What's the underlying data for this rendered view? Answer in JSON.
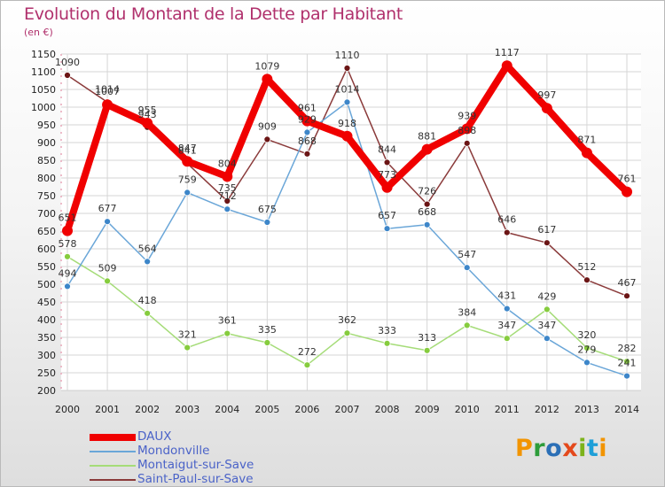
{
  "title": "Evolution du Montant de la Dette par Habitant",
  "unit": "(en €)",
  "logo": {
    "text": "Proxiti",
    "letters": [
      {
        "ch": "P",
        "color": "#f29400"
      },
      {
        "ch": "r",
        "color": "#2d9c3a"
      },
      {
        "ch": "o",
        "color": "#2b6fb6"
      },
      {
        "ch": "x",
        "color": "#e4491c"
      },
      {
        "ch": "i",
        "color": "#7cb31b"
      },
      {
        "ch": "t",
        "color": "#1e9fd8"
      },
      {
        "ch": "i",
        "color": "#f29400"
      }
    ]
  },
  "chart_data": {
    "type": "line",
    "title": "Evolution du Montant de la Dette par Habitant",
    "subtitle": "(en €)",
    "x": [
      "2000",
      "2001",
      "2002",
      "2003",
      "2004",
      "2005",
      "2006",
      "2007",
      "2008",
      "2009",
      "2010",
      "2011",
      "2012",
      "2013",
      "2014"
    ],
    "ylim": [
      200,
      1150
    ],
    "yticks": [
      200,
      250,
      300,
      350,
      400,
      450,
      500,
      550,
      600,
      650,
      700,
      750,
      800,
      850,
      900,
      950,
      1000,
      1050,
      1100,
      1150
    ],
    "grid": true,
    "legend_position": "bottom-left",
    "series": [
      {
        "name": "DAUX",
        "color": "#f00000",
        "marker_color": "#f00000",
        "width": 8,
        "marker_r": 6,
        "values": [
          651,
          1007,
          955,
          847,
          804,
          1079,
          961,
          918,
          773,
          881,
          939,
          1117,
          997,
          871,
          761
        ],
        "labels": [
          "651",
          "1007",
          "955",
          "847",
          "804",
          "1079",
          "961",
          "918",
          "773",
          "881",
          "939",
          "1117",
          "997",
          "871",
          "761"
        ]
      },
      {
        "name": "Mondonville",
        "color": "#6aa6d8",
        "marker_color": "#3d86c9",
        "width": 1.5,
        "marker_r": 3.5,
        "values": [
          494,
          677,
          564,
          759,
          712,
          675,
          929,
          1014,
          657,
          668,
          547,
          431,
          347,
          279,
          241
        ],
        "labels": [
          "494",
          "677",
          "564",
          "759",
          "712",
          "675",
          "929",
          "1014",
          "657",
          "668",
          "547",
          "431",
          "347",
          "279",
          "241"
        ]
      },
      {
        "name": "Montaigut-sur-Save",
        "color": "#a5dc78",
        "marker_color": "#86cc3e",
        "width": 1.5,
        "marker_r": 3.5,
        "values": [
          578,
          509,
          418,
          321,
          361,
          335,
          272,
          362,
          333,
          313,
          384,
          347,
          429,
          320,
          282
        ],
        "labels": [
          "578",
          "509",
          "418",
          "321",
          "361",
          "335",
          "272",
          "362",
          "333",
          "313",
          "384",
          "347",
          "429",
          "320",
          "282"
        ]
      },
      {
        "name": "Saint-Paul-sur-Save",
        "color": "#8a3a3a",
        "marker_color": "#6b1515",
        "width": 1.5,
        "marker_r": 3.5,
        "values": [
          1090,
          1014,
          943,
          841,
          735,
          909,
          868,
          1110,
          844,
          726,
          898,
          646,
          617,
          512,
          467
        ],
        "labels": [
          "1090",
          "1014",
          "943",
          "841",
          "735",
          "909",
          "868",
          "1110",
          "844",
          "726",
          "898",
          "646",
          "617",
          "512",
          "467"
        ]
      }
    ]
  }
}
